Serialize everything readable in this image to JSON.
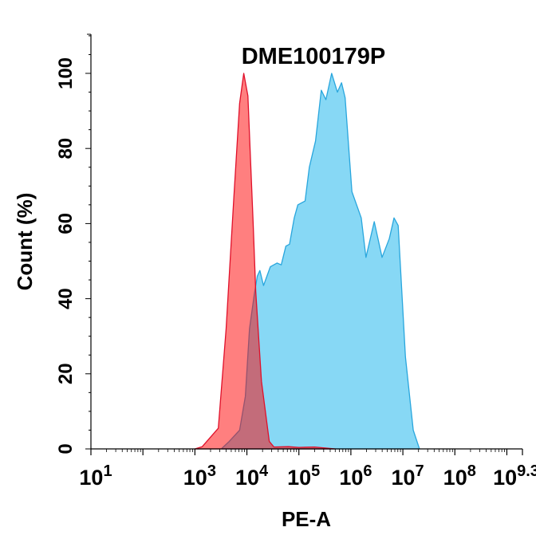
{
  "chart_data": {
    "type": "area",
    "title": "DME100179P",
    "xlabel": "PE-A",
    "ylabel": "Count  (%)",
    "x_scale": "log10",
    "xlim_log10": [
      1,
      9.3
    ],
    "ylim": [
      0,
      110
    ],
    "x_tick_labels": [
      {
        "base": "10",
        "exp": "1",
        "value_log10": 1
      },
      {
        "base": "10",
        "exp": "3",
        "value_log10": 3
      },
      {
        "base": "10",
        "exp": "4",
        "value_log10": 4
      },
      {
        "base": "10",
        "exp": "5",
        "value_log10": 5
      },
      {
        "base": "10",
        "exp": "6",
        "value_log10": 6
      },
      {
        "base": "10",
        "exp": "7",
        "value_log10": 7
      },
      {
        "base": "10",
        "exp": "8",
        "value_log10": 8
      },
      {
        "base": "10",
        "exp": "9.3",
        "value_log10": 9.3
      }
    ],
    "y_ticks": [
      "0",
      "20",
      "40",
      "60",
      "80",
      "100"
    ],
    "grid": false,
    "series": [
      {
        "color_fill": "rgba(135,216,245,1)",
        "color_line": "#29a6dd",
        "x_log10": [
          3.52,
          3.66,
          3.86,
          3.97,
          4.05,
          4.14,
          4.2,
          4.25,
          4.32,
          4.45,
          4.58,
          4.66,
          4.75,
          4.82,
          4.91,
          4.98,
          5.12,
          5.2,
          5.32,
          5.43,
          5.52,
          5.63,
          5.74,
          5.82,
          5.89,
          6.02,
          6.2,
          6.29,
          6.45,
          6.6,
          6.74,
          6.83,
          6.91,
          7.05,
          7.2,
          7.32
        ],
        "y": [
          0.2,
          2,
          5,
          14,
          32,
          41,
          46,
          47.5,
          43.5,
          48.5,
          49.5,
          49,
          54,
          54.5,
          61.5,
          65,
          66,
          75,
          82,
          95.5,
          93,
          100,
          95,
          97.5,
          93.5,
          68.5,
          61.5,
          51,
          60.5,
          51,
          56,
          61.5,
          59.5,
          24.5,
          5,
          0
        ]
      },
      {
        "color_fill": "rgba(255,0,0,0.5)",
        "color_line": "#e0102a",
        "x_log10": [
          3.0,
          3.14,
          3.45,
          3.6,
          3.75,
          3.86,
          3.94,
          4.02,
          4.12,
          4.17,
          4.28,
          4.43,
          4.52,
          4.8,
          5.0,
          5.3,
          5.7
        ],
        "y": [
          0,
          0.6,
          5.5,
          32,
          67,
          92,
          100,
          94,
          60,
          42,
          18,
          2,
          0.5,
          0.6,
          0.4,
          0.5,
          0
        ]
      }
    ]
  }
}
